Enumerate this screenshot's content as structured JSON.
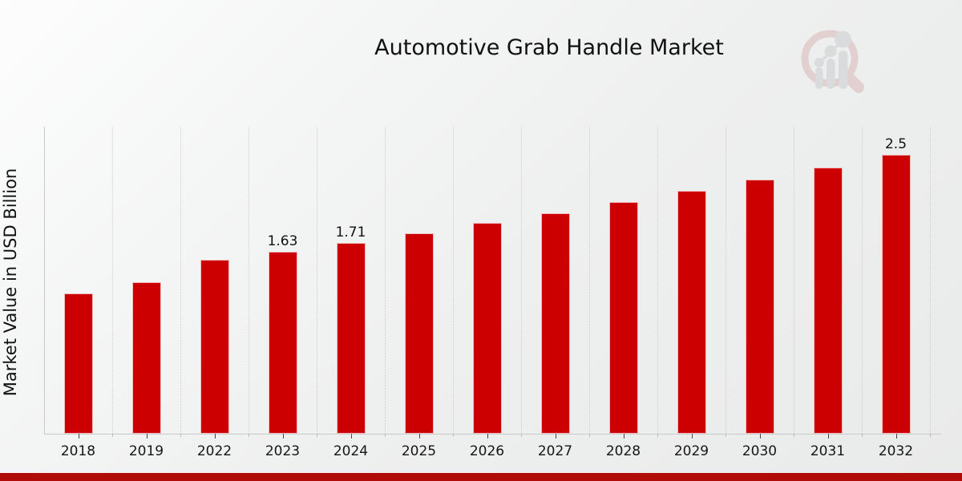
{
  "title": "Automotive Grab Handle Market",
  "ylabel": "Market Value in USD Billion",
  "logo_name": "market-research-magnifier-logo",
  "colors": {
    "bar": "#cc0000",
    "footer_band": "#b00b08",
    "axis": "#c9c9c9",
    "gridline": "#cdcdcd",
    "text": "#111111",
    "logo_ring_pink": "#d9b4b4",
    "logo_bars_gray": "#c7c9cc"
  },
  "chart_data": {
    "type": "bar",
    "title": "Automotive Grab Handle Market",
    "xlabel": "",
    "ylabel": "Market Value in USD Billion",
    "categories": [
      "2018",
      "2019",
      "2022",
      "2023",
      "2024",
      "2025",
      "2026",
      "2027",
      "2028",
      "2029",
      "2030",
      "2031",
      "2032"
    ],
    "values": [
      1.26,
      1.36,
      1.56,
      1.63,
      1.71,
      1.8,
      1.89,
      1.98,
      2.08,
      2.18,
      2.28,
      2.39,
      2.5
    ],
    "bar_labels": [
      null,
      null,
      null,
      "1.63",
      "1.71",
      null,
      null,
      null,
      null,
      null,
      null,
      null,
      "2.5"
    ],
    "ylim": [
      0,
      2.75
    ],
    "grid": "vertical-between-categories",
    "legend": "none",
    "unit": "USD Billion"
  }
}
